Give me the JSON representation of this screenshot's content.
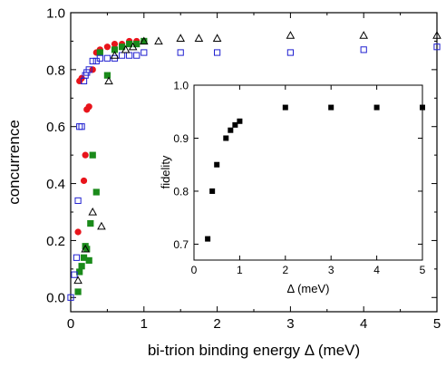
{
  "chart_data": [
    {
      "type": "scatter",
      "title": "",
      "xlabel": "bi-trion binding energy Δ (meV)",
      "ylabel": "concurrence",
      "xlim": [
        0,
        5
      ],
      "ylim": [
        -0.05,
        1.0
      ],
      "xticks": [
        0,
        1,
        2,
        3,
        4,
        5
      ],
      "xtick_labels": [
        "0",
        "1",
        "2",
        "3",
        "4",
        "5"
      ],
      "yticks": [
        0.0,
        0.2,
        0.4,
        0.6,
        0.8,
        1.0
      ],
      "ytick_labels": [
        "0.0",
        "0.2",
        "0.4",
        "0.6",
        "0.8",
        "1.0"
      ],
      "grid": false,
      "legend": "none",
      "series": [
        {
          "marker": "filled-circle",
          "color": "#e8141b",
          "x": [
            0.1,
            0.12,
            0.15,
            0.18,
            0.2,
            0.22,
            0.25,
            0.3,
            0.35,
            0.4,
            0.5,
            0.6,
            0.7,
            0.8,
            0.9,
            1.0
          ],
          "y": [
            0.23,
            0.76,
            0.77,
            0.41,
            0.5,
            0.66,
            0.67,
            0.8,
            0.86,
            0.87,
            0.88,
            0.89,
            0.89,
            0.9,
            0.9,
            0.9
          ]
        },
        {
          "marker": "filled-square",
          "color": "#1a8a1a",
          "x": [
            0.1,
            0.12,
            0.15,
            0.18,
            0.2,
            0.22,
            0.25,
            0.27,
            0.3,
            0.35,
            0.4,
            0.5,
            0.6,
            0.7,
            0.8,
            0.9,
            1.0
          ],
          "y": [
            0.02,
            0.09,
            0.11,
            0.14,
            0.18,
            0.17,
            0.13,
            0.26,
            0.5,
            0.37,
            0.86,
            0.78,
            0.87,
            0.88,
            0.89,
            0.89,
            0.9
          ]
        },
        {
          "marker": "open-square",
          "color": "#2020d0",
          "x": [
            0.0,
            0.05,
            0.08,
            0.1,
            0.12,
            0.15,
            0.18,
            0.2,
            0.22,
            0.25,
            0.3,
            0.35,
            0.4,
            0.5,
            0.6,
            0.7,
            0.8,
            0.9,
            1.0,
            1.5,
            2.0,
            3.0,
            4.0,
            5.0
          ],
          "y": [
            0.0,
            0.08,
            0.14,
            0.34,
            0.6,
            0.6,
            0.76,
            0.78,
            0.79,
            0.8,
            0.83,
            0.83,
            0.84,
            0.84,
            0.84,
            0.85,
            0.85,
            0.85,
            0.86,
            0.86,
            0.86,
            0.86,
            0.87,
            0.88
          ]
        },
        {
          "marker": "open-triangle",
          "color": "#000000",
          "x": [
            0.1,
            0.2,
            0.3,
            0.42,
            0.52,
            0.6,
            0.75,
            0.85,
            1.0,
            1.2,
            1.5,
            1.75,
            2.0,
            3.0,
            4.0,
            5.0
          ],
          "y": [
            0.06,
            0.17,
            0.3,
            0.25,
            0.76,
            0.85,
            0.87,
            0.88,
            0.9,
            0.9,
            0.91,
            0.91,
            0.91,
            0.92,
            0.92,
            0.92
          ]
        }
      ]
    },
    {
      "type": "scatter",
      "title": "",
      "xlabel": "Δ (meV)",
      "ylabel": "fidelity",
      "xlim": [
        0,
        5
      ],
      "ylim": [
        0.67,
        1.0
      ],
      "xticks": [
        0,
        1,
        2,
        3,
        4,
        5
      ],
      "xtick_labels": [
        "0",
        "1",
        "2",
        "3",
        "4",
        "5"
      ],
      "yticks": [
        0.7,
        0.8,
        0.9,
        1.0
      ],
      "ytick_labels": [
        "0.7",
        "0.8",
        "0.9",
        "1.0"
      ],
      "grid": false,
      "legend": "none",
      "series": [
        {
          "marker": "filled-square",
          "color": "#000000",
          "x": [
            0.3,
            0.4,
            0.5,
            0.7,
            0.8,
            0.9,
            1.0,
            2.0,
            3.0,
            4.0,
            5.0
          ],
          "y": [
            0.71,
            0.8,
            0.85,
            0.9,
            0.915,
            0.925,
            0.932,
            0.958,
            0.958,
            0.958,
            0.958
          ]
        }
      ]
    }
  ]
}
